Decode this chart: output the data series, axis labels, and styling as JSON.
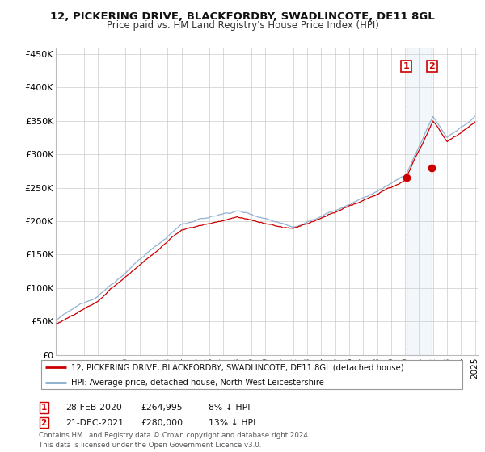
{
  "title": "12, PICKERING DRIVE, BLACKFORDBY, SWADLINCOTE, DE11 8GL",
  "subtitle": "Price paid vs. HM Land Registry's House Price Index (HPI)",
  "legend_line1": "12, PICKERING DRIVE, BLACKFORDBY, SWADLINCOTE, DE11 8GL (detached house)",
  "legend_line2": "HPI: Average price, detached house, North West Leicestershire",
  "footer": "Contains HM Land Registry data © Crown copyright and database right 2024.\nThis data is licensed under the Open Government Licence v3.0.",
  "property_color": "#cc0000",
  "hpi_color": "#88aacc",
  "annotation_box_color": "#cc0000",
  "span_color": "#ddeeff",
  "transaction1_date": "28-FEB-2020",
  "transaction1_price": "£264,995",
  "transaction1_hpi": "8% ↓ HPI",
  "transaction2_date": "21-DEC-2021",
  "transaction2_price": "£280,000",
  "transaction2_hpi": "13% ↓ HPI",
  "yticks": [
    0,
    50000,
    100000,
    150000,
    200000,
    250000,
    300000,
    350000,
    400000,
    450000
  ],
  "ytick_labels": [
    "£0",
    "£50K",
    "£100K",
    "£150K",
    "£200K",
    "£250K",
    "£300K",
    "£350K",
    "£400K",
    "£450K"
  ],
  "start_year": 1995,
  "end_year": 2025
}
